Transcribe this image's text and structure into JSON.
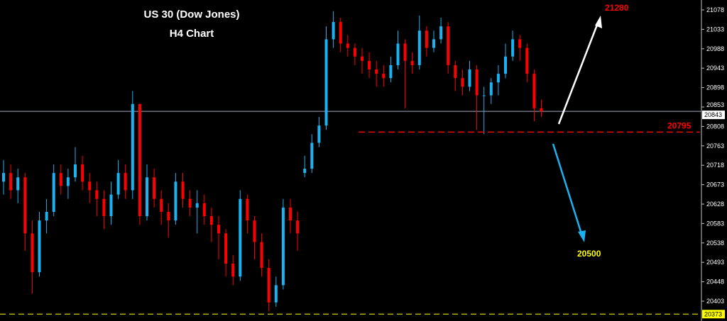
{
  "chart_data": {
    "type": "candlestick",
    "title": "US 30 (Dow Jones)",
    "subtitle": "H4 Chart",
    "ylim": [
      20373,
      21085
    ],
    "y_ticks": [
      21078,
      21033,
      20988,
      20943,
      20898,
      20853,
      20808,
      20763,
      20718,
      20673,
      20628,
      20583,
      20538,
      20493,
      20448,
      20403
    ],
    "current_price": 20843,
    "bottom_level": 20373,
    "support_level": {
      "value": 20795,
      "label": "20795"
    },
    "target_up": {
      "label": "21280"
    },
    "target_down": {
      "label": "20500"
    },
    "candles": [
      [
        20680,
        20730,
        20650,
        20700
      ],
      [
        20700,
        20720,
        20640,
        20660
      ],
      [
        20660,
        20710,
        20630,
        20690
      ],
      [
        20690,
        20700,
        20520,
        20560
      ],
      [
        20560,
        20590,
        20420,
        20470
      ],
      [
        20470,
        20610,
        20460,
        20590
      ],
      [
        20590,
        20640,
        20560,
        20610
      ],
      [
        20610,
        20720,
        20600,
        20700
      ],
      [
        20700,
        20720,
        20650,
        20670
      ],
      [
        20670,
        20710,
        20640,
        20690
      ],
      [
        20690,
        20760,
        20680,
        20720
      ],
      [
        20720,
        20740,
        20660,
        20680
      ],
      [
        20680,
        20700,
        20630,
        20660
      ],
      [
        20660,
        20680,
        20600,
        20640
      ],
      [
        20640,
        20660,
        20570,
        20600
      ],
      [
        20600,
        20680,
        20580,
        20650
      ],
      [
        20650,
        20730,
        20640,
        20700
      ],
      [
        20700,
        20720,
        20640,
        20660
      ],
      [
        20660,
        20890,
        20640,
        20860
      ],
      [
        20860,
        20860,
        20580,
        20600
      ],
      [
        20600,
        20720,
        20590,
        20690
      ],
      [
        20690,
        20710,
        20620,
        20640
      ],
      [
        20640,
        20660,
        20580,
        20610
      ],
      [
        20610,
        20630,
        20550,
        20590
      ],
      [
        20590,
        20700,
        20580,
        20680
      ],
      [
        20680,
        20700,
        20620,
        20640
      ],
      [
        20640,
        20660,
        20600,
        20620
      ],
      [
        20620,
        20660,
        20560,
        20630
      ],
      [
        20630,
        20650,
        20580,
        20600
      ],
      [
        20600,
        20620,
        20540,
        20580
      ],
      [
        20580,
        20600,
        20500,
        20560
      ],
      [
        20560,
        20570,
        20460,
        20490
      ],
      [
        20490,
        20510,
        20440,
        20460
      ],
      [
        20460,
        20660,
        20450,
        20640
      ],
      [
        20640,
        20650,
        20560,
        20590
      ],
      [
        20590,
        20600,
        20500,
        20540
      ],
      [
        20540,
        20560,
        20460,
        20480
      ],
      [
        20480,
        20500,
        20380,
        20400
      ],
      [
        20400,
        20460,
        20390,
        20440
      ],
      [
        20440,
        20640,
        20430,
        20620
      ],
      [
        20620,
        20640,
        20560,
        20590
      ],
      [
        20590,
        20610,
        20520,
        20560
      ],
      [
        20700,
        20740,
        20690,
        20710
      ],
      [
        20710,
        20790,
        20700,
        20770
      ],
      [
        20770,
        20830,
        20760,
        20810
      ],
      [
        20810,
        21040,
        20800,
        21010
      ],
      [
        21010,
        21075,
        20990,
        21050
      ],
      [
        21050,
        21060,
        20980,
        21000
      ],
      [
        21000,
        21020,
        20970,
        20990
      ],
      [
        20990,
        21000,
        20950,
        20970
      ],
      [
        20970,
        20990,
        20930,
        20960
      ],
      [
        20960,
        20980,
        20920,
        20940
      ],
      [
        20940,
        20960,
        20900,
        20930
      ],
      [
        20930,
        20950,
        20900,
        20920
      ],
      [
        20920,
        20970,
        20910,
        20950
      ],
      [
        20950,
        21030,
        20940,
        21000
      ],
      [
        21000,
        21010,
        20850,
        20960
      ],
      [
        20960,
        20980,
        20930,
        20950
      ],
      [
        20950,
        21065,
        20940,
        21030
      ],
      [
        21030,
        21040,
        20970,
        20990
      ],
      [
        20990,
        21030,
        20980,
        21010
      ],
      [
        21010,
        21060,
        21000,
        21040
      ],
      [
        21040,
        21050,
        20930,
        20950
      ],
      [
        20950,
        20960,
        20890,
        20920
      ],
      [
        20920,
        20940,
        20880,
        20900
      ],
      [
        20900,
        20960,
        20890,
        20940
      ],
      [
        20940,
        20950,
        20800,
        20880
      ],
      [
        20880,
        20900,
        20790,
        20880
      ],
      [
        20880,
        20920,
        20860,
        20910
      ],
      [
        20910,
        20950,
        20880,
        20930
      ],
      [
        20930,
        21000,
        20920,
        20970
      ],
      [
        20970,
        21030,
        20960,
        21010
      ],
      [
        21010,
        21020,
        20960,
        20990
      ],
      [
        20990,
        21000,
        20910,
        20930
      ],
      [
        20930,
        20940,
        20820,
        20850
      ],
      [
        20850,
        20870,
        20830,
        20843
      ]
    ],
    "colors": {
      "up": "#1ab2f0",
      "down": "#ff0000",
      "background": "#000000",
      "support": "#ff0000",
      "bottom": "#ffff00",
      "current": "#a0a8b8"
    }
  }
}
